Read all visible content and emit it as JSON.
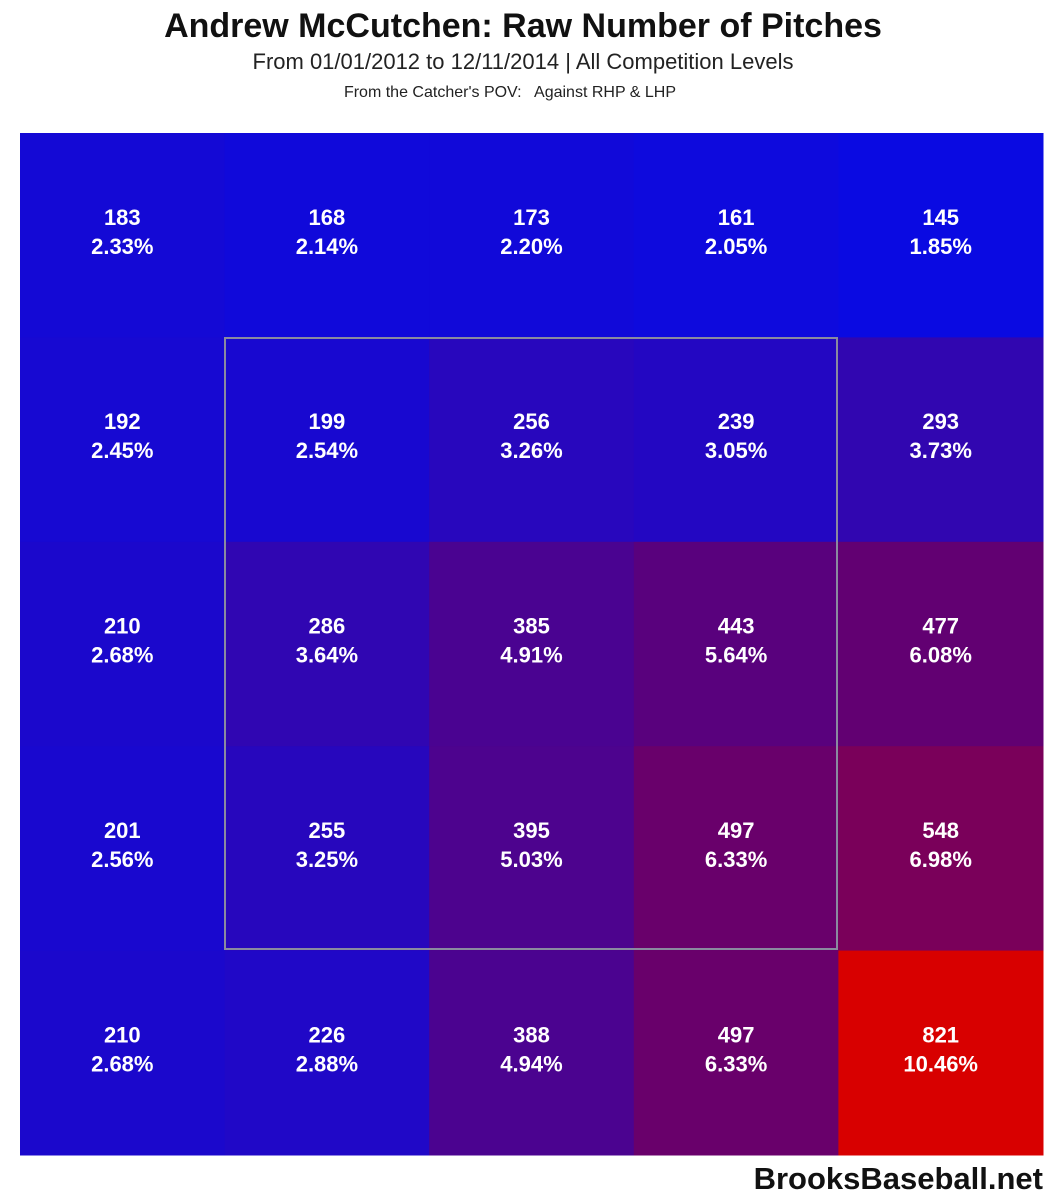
{
  "chart_data": {
    "type": "heatmap",
    "title": "Andrew McCutchen: Raw Number of Pitches",
    "subtitle": "From 01/01/2012 to 12/11/2014 | All Competition Levels",
    "note": "From the Catcher's POV:   Against RHP & LHP",
    "watermark": "BrooksBaseball.net",
    "values": [
      [
        183,
        168,
        173,
        161,
        145
      ],
      [
        192,
        199,
        256,
        239,
        293
      ],
      [
        210,
        286,
        385,
        443,
        477
      ],
      [
        201,
        255,
        395,
        497,
        548
      ],
      [
        210,
        226,
        388,
        497,
        821
      ]
    ],
    "value_labels": [
      [
        "2.33%",
        "2.14%",
        "2.20%",
        "2.05%",
        "1.85%"
      ],
      [
        "2.45%",
        "2.54%",
        "3.26%",
        "3.05%",
        "3.73%"
      ],
      [
        "2.68%",
        "3.64%",
        "4.91%",
        "5.64%",
        "6.08%"
      ],
      [
        "2.56%",
        "3.25%",
        "5.03%",
        "6.33%",
        "6.98%"
      ],
      [
        "2.68%",
        "2.88%",
        "4.94%",
        "6.33%",
        "10.46%"
      ]
    ],
    "colors": [
      "#0a0ae2",
      "#640070",
      "#d80000"
    ]
  }
}
